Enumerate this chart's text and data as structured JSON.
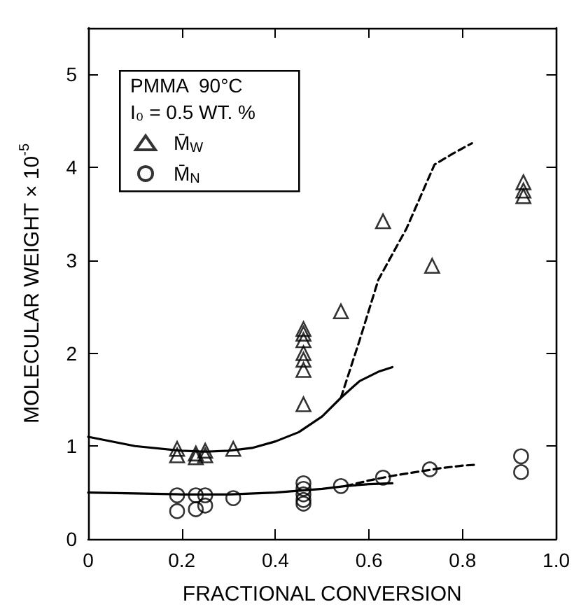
{
  "chart_data": {
    "type": "scatter",
    "xlabel": "FRACTIONAL CONVERSION",
    "ylabel": "MOLECULAR WEIGHT × 10$^{-5}$",
    "legend_title": "PMMA  90°C",
    "annotations": [
      "I₀ = 0.5 WT. %"
    ],
    "legend": "top left",
    "grid": false,
    "xlim": [
      0,
      1
    ],
    "xticks": [
      0,
      0.2,
      0.4,
      0.6,
      0.8,
      {
        "value": 1,
        "label": "1.0"
      }
    ],
    "ylim": [
      0,
      5.5
    ],
    "yticks": [
      0,
      1,
      2,
      3,
      4,
      5
    ],
    "series": [
      {
        "name": "M̄$_{W}$",
        "color": "#000000",
        "marker": "triangle",
        "x": [
          0.19,
          0.19,
          0.23,
          0.23,
          0.25,
          0.25,
          0.31,
          0.46,
          0.46,
          0.46,
          0.46,
          0.46,
          0.46,
          0.46,
          0.54,
          0.63,
          0.735,
          0.93,
          0.93,
          0.93
        ],
        "values": [
          0.97,
          0.9,
          0.92,
          0.88,
          0.95,
          0.9,
          0.97,
          2.26,
          2.21,
          2.14,
          2.0,
          1.93,
          1.82,
          1.45,
          2.45,
          3.42,
          2.94,
          3.84,
          3.75,
          3.69
        ]
      },
      {
        "name": "M̄$_{N}$",
        "color": "#000000",
        "marker": "circle",
        "x": [
          0.19,
          0.19,
          0.23,
          0.23,
          0.25,
          0.25,
          0.31,
          0.46,
          0.46,
          0.46,
          0.46,
          0.46,
          0.54,
          0.63,
          0.73,
          0.925,
          0.925
        ],
        "values": [
          0.47,
          0.3,
          0.47,
          0.32,
          0.47,
          0.36,
          0.44,
          0.6,
          0.54,
          0.48,
          0.42,
          0.38,
          0.57,
          0.66,
          0.75,
          0.89,
          0.72
        ]
      },
      {
        "type": "line",
        "color": "#000000",
        "marker": "none",
        "line_style": "solid",
        "x": [
          0,
          0.1,
          0.2,
          0.25,
          0.3,
          0.35,
          0.4,
          0.45,
          0.5,
          0.54,
          0.58,
          0.62,
          0.65
        ],
        "values": [
          1.1,
          1.0,
          0.95,
          0.94,
          0.95,
          0.98,
          1.05,
          1.15,
          1.32,
          1.52,
          1.7,
          1.8,
          1.85
        ]
      },
      {
        "type": "line",
        "color": "#000000",
        "marker": "none",
        "line_style": "dashed",
        "x": [
          0.54,
          0.58,
          0.62,
          0.68,
          0.74,
          0.78,
          0.82
        ],
        "values": [
          1.52,
          2.14,
          2.79,
          3.34,
          4.03,
          4.15,
          4.26
        ]
      },
      {
        "type": "line",
        "color": "#000000",
        "marker": "none",
        "line_style": "solid",
        "x": [
          0,
          0.1,
          0.2,
          0.3,
          0.4,
          0.5,
          0.55,
          0.6,
          0.65
        ],
        "values": [
          0.5,
          0.49,
          0.48,
          0.48,
          0.5,
          0.54,
          0.57,
          0.59,
          0.6
        ]
      },
      {
        "type": "line",
        "color": "#000000",
        "marker": "none",
        "line_style": "dashed",
        "x": [
          0.55,
          0.6,
          0.65,
          0.7,
          0.75,
          0.8,
          0.83
        ],
        "values": [
          0.57,
          0.63,
          0.68,
          0.72,
          0.76,
          0.79,
          0.8
        ]
      }
    ]
  }
}
